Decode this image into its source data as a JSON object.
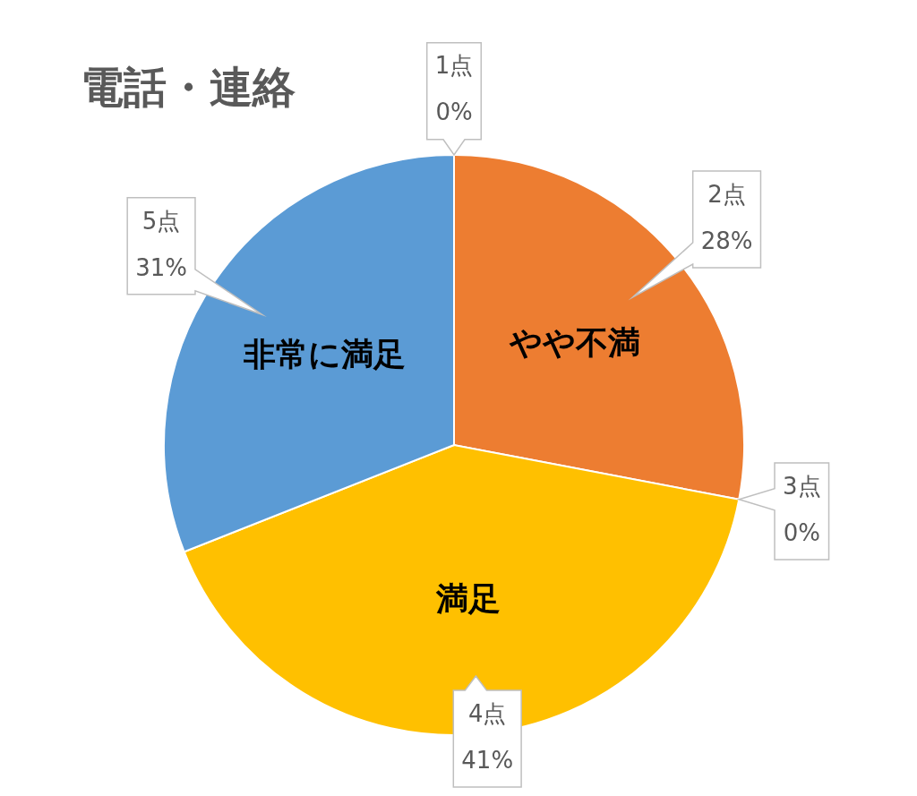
{
  "chart_data": {
    "type": "pie",
    "title": "電話・連絡",
    "categories": [
      "1点",
      "2点",
      "3点",
      "4点",
      "5点"
    ],
    "values": [
      0,
      28,
      0,
      41,
      31
    ],
    "colors": [
      "#4472c4",
      "#ed7d31",
      "#a5a5a5",
      "#ffc000",
      "#5b9bd5"
    ],
    "value_labels": [
      "0%",
      "28%",
      "0%",
      "41%",
      "31%"
    ],
    "annotations": [
      {
        "text": "やや不満",
        "x": "2点"
      },
      {
        "text": "満足",
        "x": "4点"
      },
      {
        "text": "非常に満足",
        "x": "5点"
      }
    ]
  }
}
